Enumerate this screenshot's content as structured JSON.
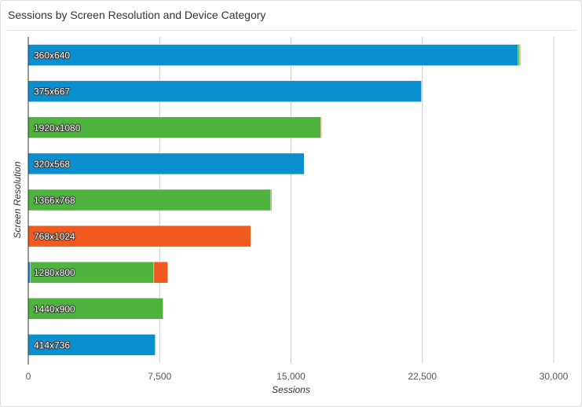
{
  "chart_data": {
    "type": "bar",
    "orientation": "horizontal",
    "stacked": true,
    "title": "Sessions by Screen Resolution and Device Category",
    "xlabel": "Sessions",
    "ylabel": "Screen Resolution",
    "xlim": [
      0,
      30000
    ],
    "x_ticks": [
      "0",
      "7,500",
      "15,000",
      "22,500",
      "30,000"
    ],
    "x_tick_values": [
      0,
      7500,
      15000,
      22500,
      30000
    ],
    "grid": "vertical",
    "legend": "none",
    "categories": [
      "360x640",
      "375x667",
      "1920x1080",
      "320x568",
      "1366x768",
      "768x1024",
      "1280x800",
      "1440x900",
      "414x736"
    ],
    "series": [
      {
        "color": "#0a8fce",
        "values": [
          27950,
          22450,
          0,
          15750,
          0,
          0,
          120,
          0,
          7250
        ]
      },
      {
        "color": "#4db33d",
        "values": [
          100,
          0,
          16700,
          0,
          13850,
          0,
          7050,
          7700,
          0
        ]
      },
      {
        "color": "#f05a1e",
        "values": [
          50,
          0,
          50,
          0,
          50,
          12700,
          800,
          0,
          0
        ]
      }
    ]
  }
}
